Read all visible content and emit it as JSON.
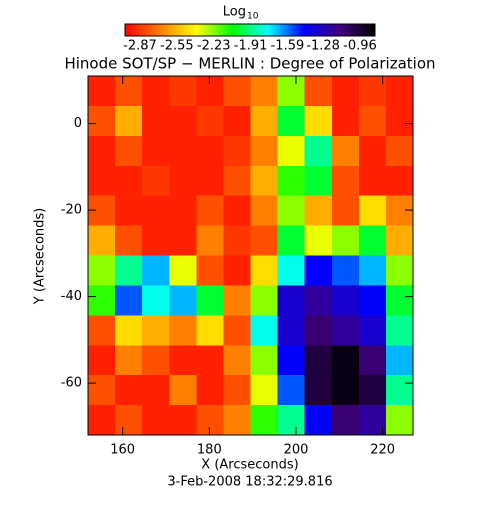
{
  "chart_data": {
    "type": "heatmap",
    "title": "Hinode SOT/SP − MERLIN : Degree of Polarization",
    "colorbar_label": "Log",
    "colorbar_label_sub": "10",
    "clim": [
      -2.87,
      -0.96
    ],
    "colorbar_ticks": [
      -2.87,
      -2.55,
      -2.23,
      -1.91,
      -1.59,
      -1.28,
      -0.96
    ],
    "colormap": [
      "#ff0000",
      "#ff8000",
      "#ffff00",
      "#00ff00",
      "#00ffff",
      "#0000ff",
      "#400080",
      "#000000"
    ],
    "x_label": "X (Arcseconds)",
    "y_label": "Y (Arcseconds)",
    "date": "3-Feb-2008 18:32:29.816",
    "xlim": [
      152,
      227
    ],
    "ylim": [
      -72,
      11
    ],
    "xticks": [
      160,
      180,
      200,
      220
    ],
    "yticks": [
      0,
      -20,
      -40,
      -60
    ],
    "z": [
      [
        -2.8,
        -2.7,
        -2.8,
        -2.75,
        -2.8,
        -2.7,
        -2.6,
        -2.2,
        -2.7,
        -2.8,
        -2.75,
        -2.8
      ],
      [
        -2.7,
        -2.5,
        -2.8,
        -2.8,
        -2.75,
        -2.8,
        -2.5,
        -2.0,
        -2.4,
        -2.8,
        -2.7,
        -2.8
      ],
      [
        -2.8,
        -2.7,
        -2.8,
        -2.8,
        -2.8,
        -2.75,
        -2.6,
        -2.3,
        -1.9,
        -2.6,
        -2.8,
        -2.7
      ],
      [
        -2.8,
        -2.8,
        -2.75,
        -2.8,
        -2.8,
        -2.7,
        -2.5,
        -2.1,
        -2.0,
        -2.7,
        -2.8,
        -2.8
      ],
      [
        -2.7,
        -2.8,
        -2.8,
        -2.8,
        -2.7,
        -2.8,
        -2.6,
        -2.2,
        -2.5,
        -2.7,
        -2.4,
        -2.6
      ],
      [
        -2.5,
        -2.7,
        -2.8,
        -2.8,
        -2.6,
        -2.75,
        -2.7,
        -2.0,
        -2.3,
        -2.2,
        -2.0,
        -2.5
      ],
      [
        -2.2,
        -1.9,
        -1.7,
        -2.3,
        -2.7,
        -2.8,
        -2.4,
        -1.8,
        -1.5,
        -1.6,
        -1.7,
        -2.2
      ],
      [
        -2.1,
        -1.6,
        -1.8,
        -1.7,
        -2.0,
        -2.6,
        -2.2,
        -1.4,
        -1.3,
        -1.4,
        -1.5,
        -2.0
      ],
      [
        -2.7,
        -2.4,
        -2.5,
        -2.6,
        -2.4,
        -2.7,
        -1.8,
        -1.4,
        -1.2,
        -1.3,
        -1.4,
        -1.9
      ],
      [
        -2.8,
        -2.6,
        -2.7,
        -2.8,
        -2.8,
        -2.6,
        -2.2,
        -1.5,
        -1.1,
        -1.0,
        -1.2,
        -1.7
      ],
      [
        -2.7,
        -2.8,
        -2.8,
        -2.6,
        -2.8,
        -2.7,
        -2.3,
        -1.6,
        -1.1,
        -1.0,
        -1.1,
        -1.9
      ],
      [
        -2.8,
        -2.7,
        -2.8,
        -2.8,
        -2.7,
        -2.6,
        -2.1,
        -1.9,
        -1.5,
        -1.2,
        -1.3,
        -2.2
      ]
    ]
  }
}
